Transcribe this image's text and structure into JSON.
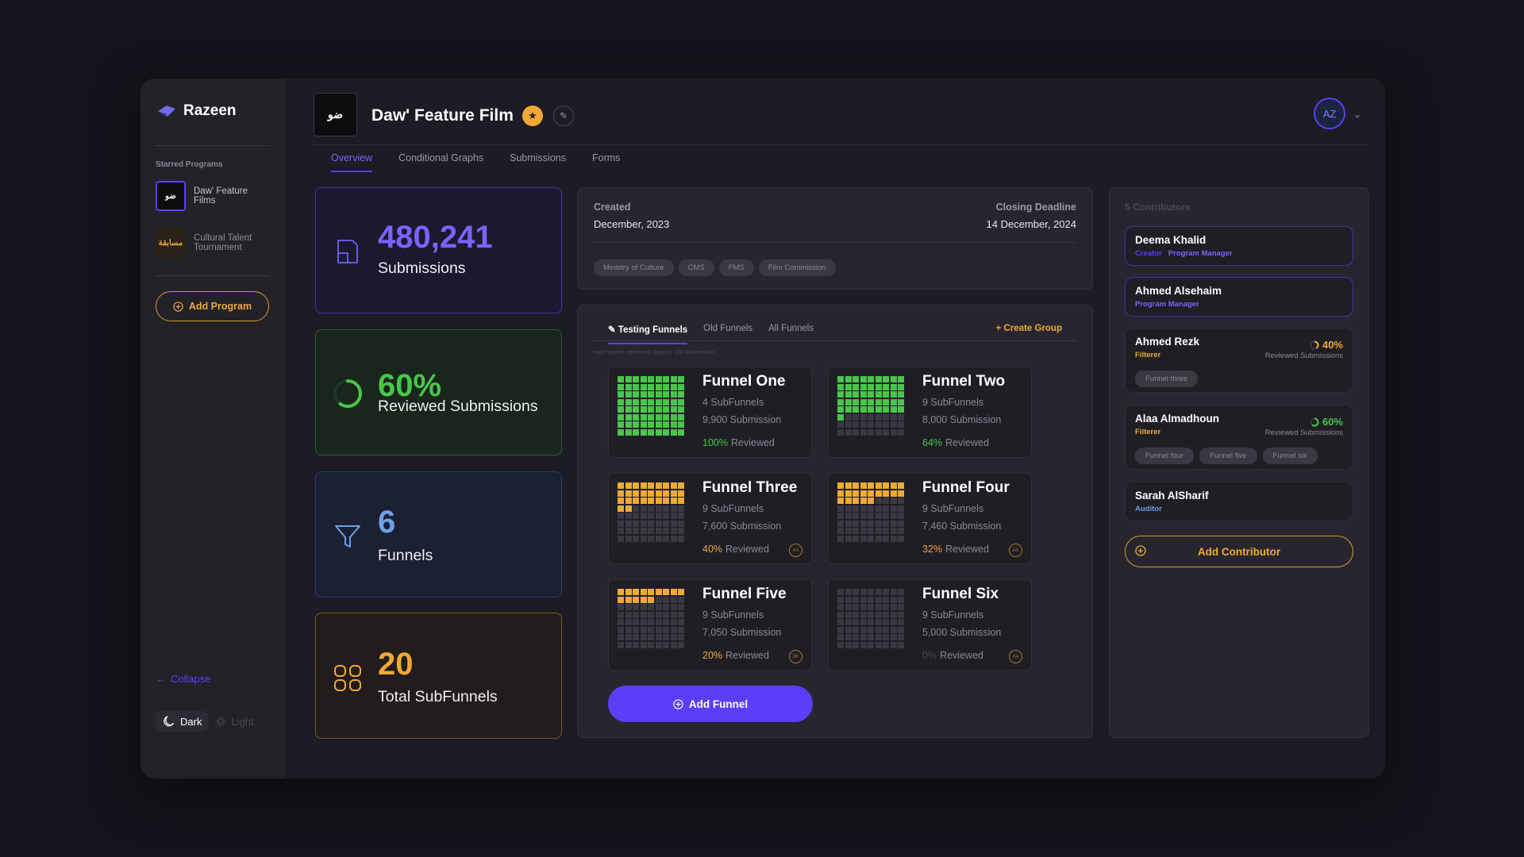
{
  "brand": {
    "name": "Razeen"
  },
  "sidebar": {
    "starred_label": "Starred Programs",
    "programs": [
      {
        "label": "Daw' Feature Films",
        "thumb": "ضو"
      },
      {
        "label": "Cultural Talent Tournament",
        "thumb": "مسابقة"
      }
    ],
    "add_program": "Add Program",
    "collapse": "Collapse",
    "theme_dark": "Dark",
    "theme_light": "Light"
  },
  "header": {
    "title": "Daw' Feature Film",
    "logo": "ضو",
    "avatar": "AZ"
  },
  "tabs": [
    "Overview",
    "Conditional Graphs",
    "Submissions",
    "Forms"
  ],
  "stats": {
    "submissions": {
      "value": "480,241",
      "label": "Submissions"
    },
    "reviewed": {
      "value": "60%",
      "label": "Reviewed Submissions",
      "fraction": 0.6
    },
    "funnels": {
      "value": "6",
      "label": "Funnels"
    },
    "subfunnels": {
      "value": "20",
      "label": "Total SubFunnels"
    }
  },
  "info": {
    "created_label": "Created",
    "created_value": "December, 2023",
    "deadline_label": "Closing Deadline",
    "deadline_value": "14 December, 2024",
    "tags": [
      "Ministry of Culture",
      "CMS",
      "FMS",
      "Film Commission"
    ]
  },
  "funnel_tabs": [
    "Testing Funnels",
    "Old Funnels",
    "All Funnels"
  ],
  "create_group": "Create Group",
  "funnel_hint": "each square represents approx. 100 submissions",
  "funnels": [
    {
      "name": "Funnel One",
      "subs": "4 SubFunnels",
      "subm": "9,900 Submission",
      "pct": "100%",
      "reviewed": "Reviewed",
      "fill": 1.0,
      "color": "#48c64a",
      "badge": ""
    },
    {
      "name": "Funnel Two",
      "subs": "9 SubFunnels",
      "subm": "8,000 Submission",
      "pct": "64%",
      "reviewed": "Reviewed",
      "fill": 0.64,
      "color": "#48c64a",
      "badge": ""
    },
    {
      "name": "Funnel Three",
      "subs": "9 SubFunnels",
      "subm": "7,600 Submission",
      "pct": "40%",
      "reviewed": "Reviewed",
      "fill": 0.4,
      "color": "#f0a935",
      "badge": "AA"
    },
    {
      "name": "Funnel Four",
      "subs": "9 SubFunnels",
      "subm": "7,460 Submission",
      "pct": "32%",
      "reviewed": "Reviewed",
      "fill": 0.32,
      "color": "#f0a935",
      "badge": "AA"
    },
    {
      "name": "Funnel Five",
      "subs": "9 SubFunnels",
      "subm": "7,050 Submission",
      "pct": "20%",
      "reviewed": "Reviewed",
      "fill": 0.2,
      "color": "#f0a935",
      "badge": "DK"
    },
    {
      "name": "Funnel Six",
      "subs": "9 SubFunnels",
      "subm": "5,000 Submission",
      "pct": "0%",
      "reviewed": "Reviewed",
      "fill": 0,
      "color": "#4a4952",
      "badge": "AA"
    }
  ],
  "add_funnel": "Add Funnel",
  "contributors": {
    "title": "5 Contributors",
    "people": [
      {
        "name": "Deema Khalid",
        "role1": "Creator",
        "role2": "Program Manager"
      },
      {
        "name": "Ahmed Alsehaim",
        "role1": "Program Manager"
      },
      {
        "name": "Ahmed Rezk",
        "role1": "Filterer",
        "pct": "40%",
        "pct_label": "Reviewed Submissions",
        "tags": [
          "Funnel three"
        ]
      },
      {
        "name": "Alaa Almadhoun",
        "role1": "Filterer",
        "pct": "60%",
        "pct_label": "Reviewed Submissions",
        "tags": [
          "Funnel four",
          "Funnel five",
          "Funnel six"
        ]
      },
      {
        "name": "Sarah AlSharif",
        "role1": "Auditor"
      }
    ],
    "add": "Add Contributor"
  },
  "colors": {
    "accent": "#5b3ff8",
    "gold": "#f0a935",
    "green": "#48c64a",
    "blue": "#6e9fe8"
  }
}
